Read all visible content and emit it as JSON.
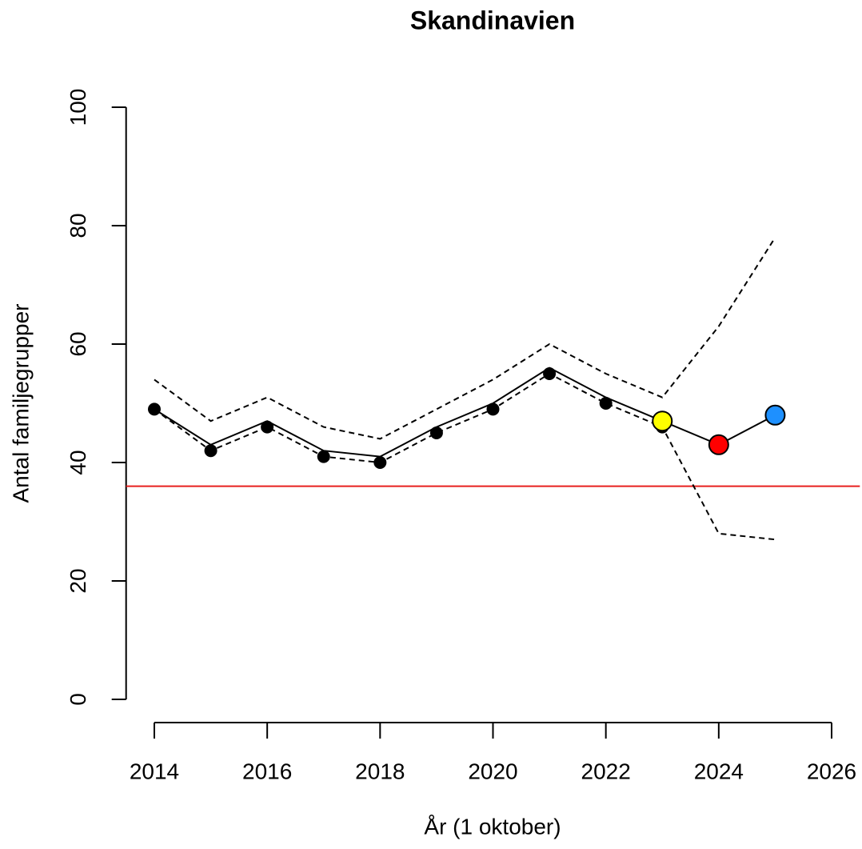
{
  "chart_data": {
    "type": "line",
    "title": "Skandinavien",
    "xlabel": "År (1 oktober)",
    "ylabel": "Antal familjegrupper",
    "x": [
      2014,
      2015,
      2016,
      2017,
      2018,
      2019,
      2020,
      2021,
      2022,
      2023,
      2024,
      2025
    ],
    "series": [
      {
        "color": "#000000",
        "line_style": "solid",
        "values": [
          49,
          43,
          47,
          42,
          41,
          46,
          50,
          56,
          51,
          47,
          43,
          48
        ]
      },
      {
        "color": "#000000",
        "line_style": "dashed",
        "values": [
          54,
          47,
          51,
          46,
          44,
          49,
          54,
          60,
          55,
          51,
          63,
          78
        ]
      },
      {
        "color": "#000000",
        "line_style": "dashed",
        "values": [
          49,
          42,
          46,
          41,
          40,
          45,
          49,
          55,
          50,
          46,
          28,
          27
        ]
      },
      {
        "color": "#000000",
        "marker": "dot",
        "values": [
          49,
          42,
          46,
          41,
          40,
          45,
          49,
          55,
          50,
          46,
          null,
          null
        ]
      },
      {
        "marker": "circle",
        "x": [
          2023,
          2024,
          2025
        ],
        "values": [
          47,
          43,
          48
        ],
        "point_colors": [
          "#ffff00",
          "#ff0000",
          "#1e90ff"
        ]
      }
    ],
    "hline": {
      "value": 36,
      "color": "#e8201f"
    },
    "xlim": [
      2013.5,
      2026.5
    ],
    "ylim": [
      -4,
      104
    ],
    "xticks": [
      2014,
      2016,
      2018,
      2020,
      2022,
      2024,
      2026
    ],
    "yticks": [
      0,
      20,
      40,
      60,
      80,
      100
    ]
  }
}
